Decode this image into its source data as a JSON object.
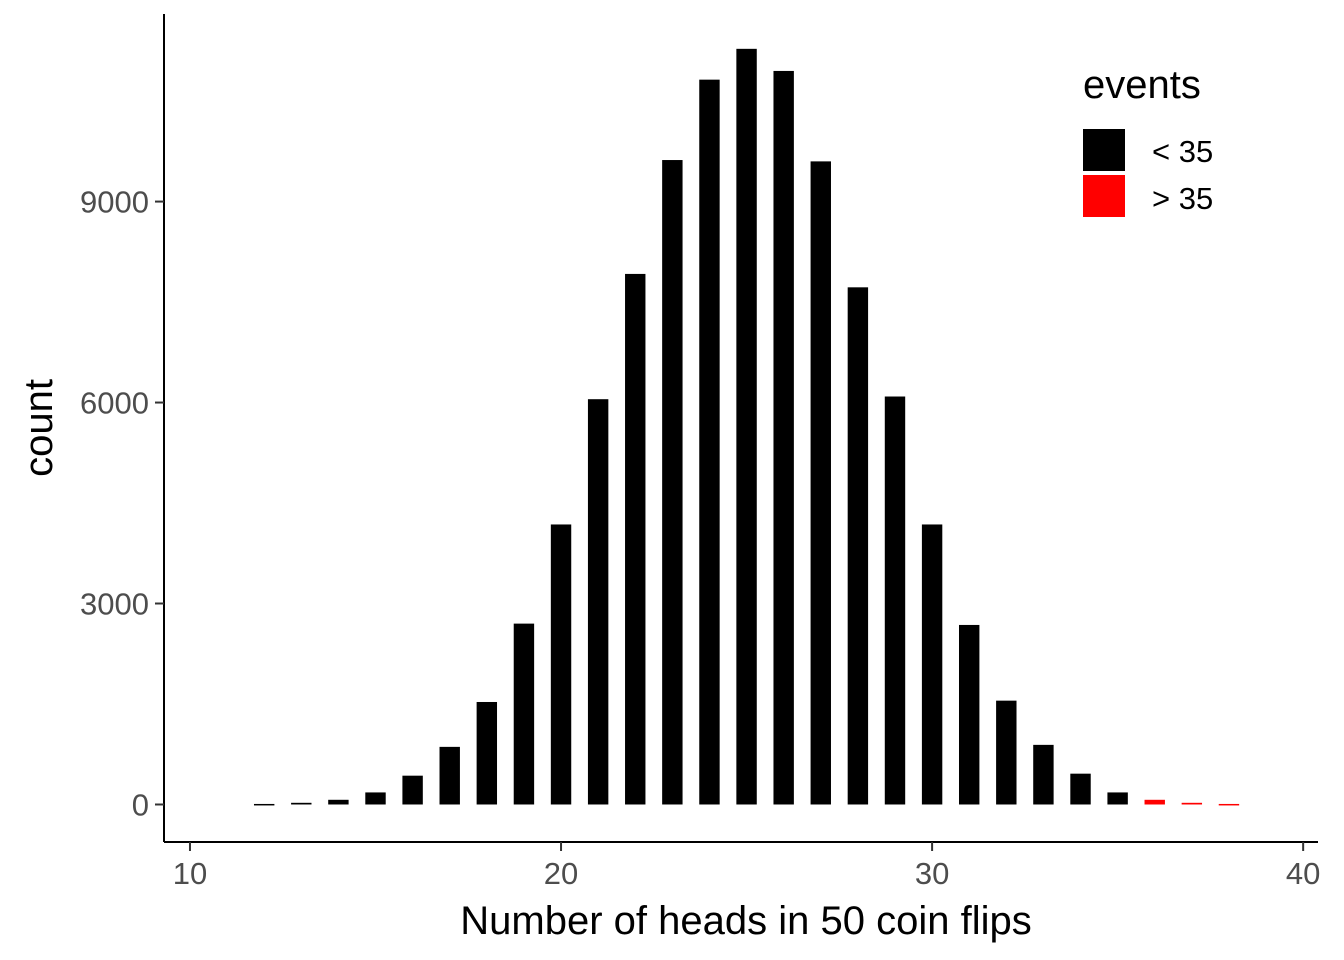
{
  "chart_data": {
    "type": "bar",
    "xlabel": "Number of heads in 50 coin flips",
    "ylabel": "count",
    "xlim": [
      9.3,
      40.4
    ],
    "ylim": [
      -560,
      11800
    ],
    "x_ticks": [
      10,
      20,
      30,
      40
    ],
    "y_ticks": [
      0,
      3000,
      6000,
      9000
    ],
    "bar_width": 0.55,
    "grid": false,
    "legend_position": "top-right",
    "legend": {
      "title": "events",
      "entries": [
        {
          "label": "< 35",
          "color": "#000000"
        },
        {
          "label": "> 35",
          "color": "#ff0000"
        }
      ]
    },
    "series": [
      {
        "name": "< 35",
        "color": "#000000",
        "x": [
          12,
          13,
          14,
          15,
          16,
          17,
          18,
          19,
          20,
          21,
          22,
          23,
          24,
          25,
          26,
          27,
          28,
          29,
          30,
          31,
          32,
          33,
          34,
          35
        ],
        "values": [
          8,
          25,
          70,
          180,
          430,
          860,
          1530,
          2700,
          4180,
          6050,
          7920,
          9620,
          10820,
          11280,
          10950,
          9600,
          7720,
          6090,
          4180,
          2680,
          1550,
          890,
          460,
          180
        ]
      },
      {
        "name": "> 35",
        "color": "#ff0000",
        "x": [
          36,
          37,
          38
        ],
        "values": [
          70,
          25,
          8
        ]
      }
    ]
  }
}
